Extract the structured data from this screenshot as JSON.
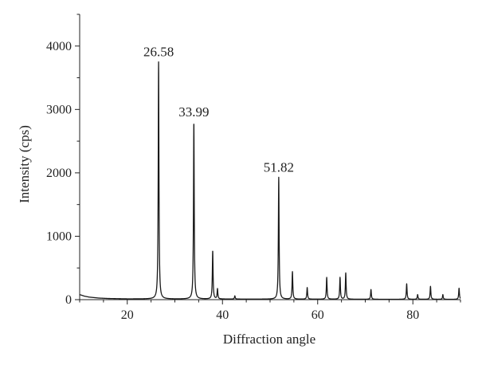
{
  "chart_data": {
    "type": "line",
    "title": "",
    "xlabel": "Diffraction angle",
    "ylabel": "Intensity (cps)",
    "xlim": [
      10,
      90
    ],
    "ylim": [
      0,
      4500
    ],
    "x_ticks": [
      20,
      40,
      60,
      80
    ],
    "y_ticks": [
      0,
      1000,
      2000,
      3000,
      4000
    ],
    "grid": false,
    "legend": "none",
    "line_color": "#1a1a1a",
    "baseline": [
      [
        10,
        80
      ],
      [
        11,
        55
      ],
      [
        12,
        40
      ],
      [
        14,
        25
      ],
      [
        16,
        18
      ],
      [
        20,
        12
      ],
      [
        30,
        10
      ],
      [
        50,
        8
      ],
      [
        70,
        6
      ],
      [
        90,
        5
      ]
    ],
    "peaks": [
      {
        "x": 26.58,
        "y": 3750,
        "label": "26.58"
      },
      {
        "x": 33.99,
        "y": 2800,
        "label": "33.99"
      },
      {
        "x": 37.95,
        "y": 770
      },
      {
        "x": 38.95,
        "y": 170
      },
      {
        "x": 42.6,
        "y": 60
      },
      {
        "x": 51.82,
        "y": 1930,
        "label": "51.82"
      },
      {
        "x": 54.7,
        "y": 440
      },
      {
        "x": 57.8,
        "y": 190
      },
      {
        "x": 61.9,
        "y": 350
      },
      {
        "x": 64.7,
        "y": 350
      },
      {
        "x": 65.9,
        "y": 420
      },
      {
        "x": 71.2,
        "y": 160
      },
      {
        "x": 78.7,
        "y": 250
      },
      {
        "x": 81.0,
        "y": 80
      },
      {
        "x": 83.7,
        "y": 210
      },
      {
        "x": 86.3,
        "y": 80
      },
      {
        "x": 89.7,
        "y": 180
      }
    ]
  }
}
